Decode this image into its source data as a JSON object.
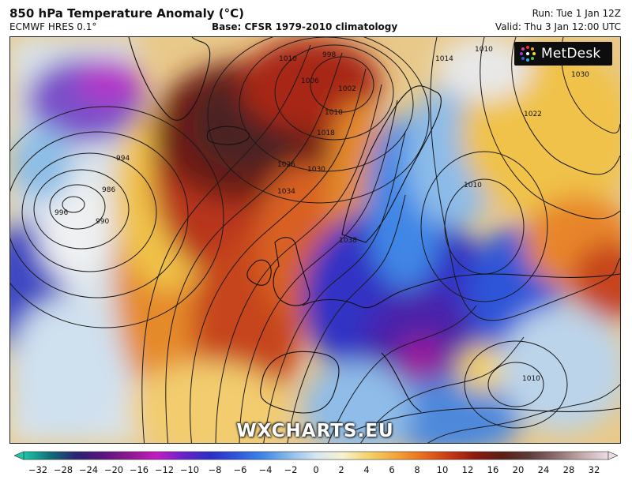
{
  "header": {
    "title": "850 hPa Temperature Anomaly (°C)",
    "model": "ECMWF HRES 0.1°",
    "base": "Base: CFSR 1979-2010 climatology",
    "run": "Run: Tue 1 Jan 12Z",
    "valid": "Valid: Thu 3 Jan 12:00 UTC"
  },
  "logo": {
    "text": "MetDesk"
  },
  "watermark": "WXCHARTS.EU",
  "isobar_labels": [
    "998",
    "1002",
    "1006",
    "1010",
    "1010",
    "1018",
    "1026",
    "1030",
    "1034",
    "1038",
    "1014",
    "1010",
    "1022",
    "1030",
    "1010",
    "1010",
    "994",
    "986",
    "990",
    "996"
  ],
  "colorbar": {
    "ticks": [
      "−32",
      "−28",
      "−24",
      "−20",
      "−16",
      "−12",
      "−10",
      "−8",
      "−6",
      "−4",
      "−2",
      "0",
      "2",
      "4",
      "6",
      "8",
      "10",
      "12",
      "16",
      "20",
      "24",
      "28",
      "32"
    ],
    "colors": [
      "#1ec7a7",
      "#0e6d7a",
      "#2a2270",
      "#5a157e",
      "#8f1990",
      "#c21cc2",
      "#6c22c9",
      "#2b2ec6",
      "#2f55d8",
      "#3f86e6",
      "#8bbbe9",
      "#d6e6f3",
      "#f7f2d0",
      "#f3d26b",
      "#f3a53a",
      "#e86f1e",
      "#c83a14",
      "#8b1a0f",
      "#5b1e16",
      "#5c3b38",
      "#8b6c6a",
      "#c2aaa9",
      "#eadde4"
    ]
  }
}
